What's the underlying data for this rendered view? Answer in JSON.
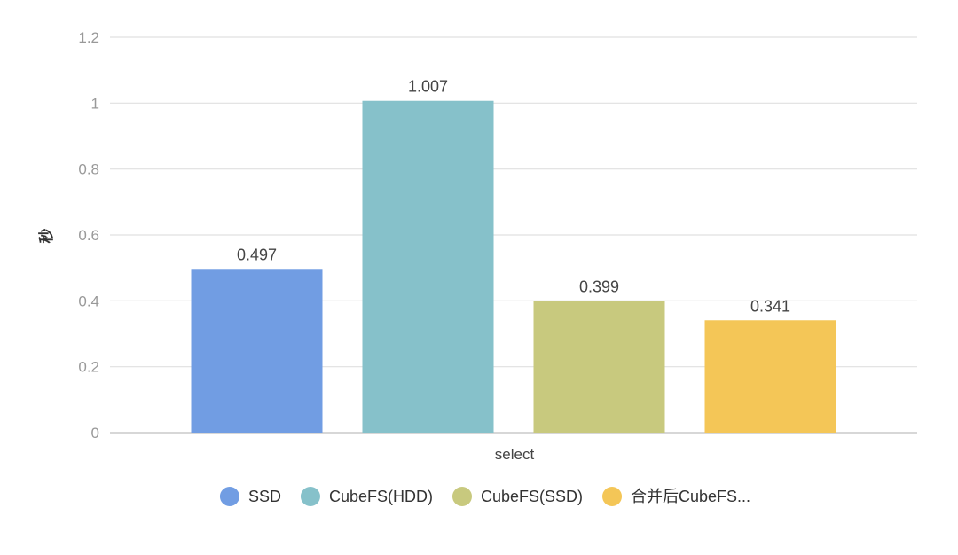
{
  "chart_data": {
    "type": "bar",
    "xlabel": "select",
    "ylabel": "秒",
    "ylim": [
      0,
      1.2
    ],
    "yticks": [
      "0",
      "0.2",
      "0.4",
      "0.6",
      "0.8",
      "1",
      "1.2"
    ],
    "grid": true,
    "legend_position": "bottom",
    "categories": [
      "select"
    ],
    "series": [
      {
        "name": "SSD",
        "values": [
          0.497
        ],
        "label": "0.497",
        "color": "#719DE3"
      },
      {
        "name": "CubeFS(HDD)",
        "values": [
          1.007
        ],
        "label": "1.007",
        "color": "#86C1CA"
      },
      {
        "name": "CubeFS(SSD)",
        "values": [
          0.399
        ],
        "label": "0.399",
        "color": "#C8C97E"
      },
      {
        "name": "合并后CubeFS...",
        "values": [
          0.341
        ],
        "label": "0.341",
        "color": "#F4C657"
      }
    ]
  }
}
